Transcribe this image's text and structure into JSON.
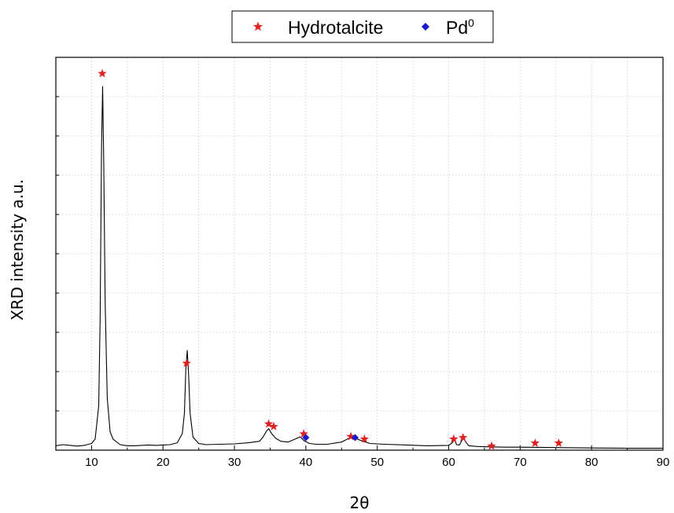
{
  "chart_data": {
    "type": "line",
    "xlabel": "2θ",
    "ylabel": "XRD intensity a.u.",
    "xlim": [
      5,
      90
    ],
    "ylim": [
      0,
      100
    ],
    "x_ticks": [
      "10",
      "20",
      "30",
      "40",
      "50",
      "60",
      "70",
      "80",
      "90"
    ],
    "grid": true,
    "legend_position": "top-center",
    "legend": [
      {
        "name": "Hydrotalcite",
        "marker": "star",
        "color": "#dd2222"
      },
      {
        "name": "Pd",
        "superscript": "0",
        "marker": "diamond",
        "color": "#1a1acc"
      }
    ],
    "series": [
      {
        "color": "#000000",
        "x": [
          5,
          6,
          7,
          8,
          9,
          10,
          10.5,
          11,
          11.2,
          11.4,
          11.55,
          11.7,
          11.9,
          12.2,
          12.6,
          13,
          14,
          15,
          16,
          17,
          18,
          19,
          20,
          21,
          22,
          22.7,
          23,
          23.2,
          23.4,
          23.6,
          23.8,
          24.2,
          25,
          26,
          28,
          30,
          32,
          33.5,
          34,
          34.5,
          34.8,
          35.2,
          35.8,
          36.5,
          37.5,
          38.5,
          39.2,
          39.8,
          40.5,
          41.5,
          43,
          45,
          46,
          46.5,
          47.2,
          48,
          49,
          51,
          54,
          57,
          60,
          60.5,
          60.8,
          61.1,
          61.5,
          61.8,
          62.1,
          62.4,
          62.8,
          64,
          66,
          68,
          70,
          75,
          80,
          85,
          90
        ],
        "values": [
          1.2,
          1.5,
          1.3,
          1.1,
          1.3,
          1.8,
          3,
          12,
          35,
          82,
          98.5,
          78,
          40,
          14,
          5,
          3,
          1.5,
          1.2,
          1.2,
          1.3,
          1.4,
          1.3,
          1.4,
          1.5,
          2,
          4.5,
          10,
          22,
          27,
          20,
          10,
          3.5,
          1.8,
          1.5,
          1.6,
          1.7,
          2,
          2.4,
          3.5,
          5.2,
          5.8,
          4.5,
          3.2,
          2.4,
          2.2,
          3,
          3.6,
          2.5,
          1.8,
          1.6,
          1.6,
          2.2,
          3.2,
          3.3,
          3,
          2.4,
          1.8,
          1.6,
          1.4,
          1.2,
          1.3,
          2,
          3,
          1.5,
          1.4,
          2.5,
          3.3,
          2.2,
          1.2,
          1,
          0.9,
          0.8,
          0.8,
          0.7,
          0.6,
          0.5,
          0.5
        ]
      }
    ],
    "markers": [
      {
        "phase": "Hydrotalcite",
        "type": "star",
        "x": 11.5,
        "y": 102
      },
      {
        "phase": "Hydrotalcite",
        "type": "star",
        "x": 23.3,
        "y": 23.5
      },
      {
        "phase": "Hydrotalcite",
        "type": "star",
        "x": 34.8,
        "y": 7.1
      },
      {
        "phase": "Hydrotalcite",
        "type": "star",
        "x": 35.5,
        "y": 6.4
      },
      {
        "phase": "Hydrotalcite",
        "type": "star",
        "x": 39.7,
        "y": 4.4
      },
      {
        "phase": "Pd",
        "type": "diamond",
        "x": 40.0,
        "y": 3.4
      },
      {
        "phase": "Hydrotalcite",
        "type": "star",
        "x": 46.3,
        "y": 3.7
      },
      {
        "phase": "Pd",
        "type": "diamond",
        "x": 46.9,
        "y": 3.4
      },
      {
        "phase": "Hydrotalcite",
        "type": "star",
        "x": 48.2,
        "y": 3.0
      },
      {
        "phase": "Hydrotalcite",
        "type": "star",
        "x": 60.7,
        "y": 3.0
      },
      {
        "phase": "Hydrotalcite",
        "type": "star",
        "x": 62.0,
        "y": 3.4
      },
      {
        "phase": "Hydrotalcite",
        "type": "star",
        "x": 66.0,
        "y": 1.1
      },
      {
        "phase": "Hydrotalcite",
        "type": "star",
        "x": 72.1,
        "y": 1.9
      },
      {
        "phase": "Hydrotalcite",
        "type": "star",
        "x": 75.4,
        "y": 1.9
      }
    ]
  }
}
